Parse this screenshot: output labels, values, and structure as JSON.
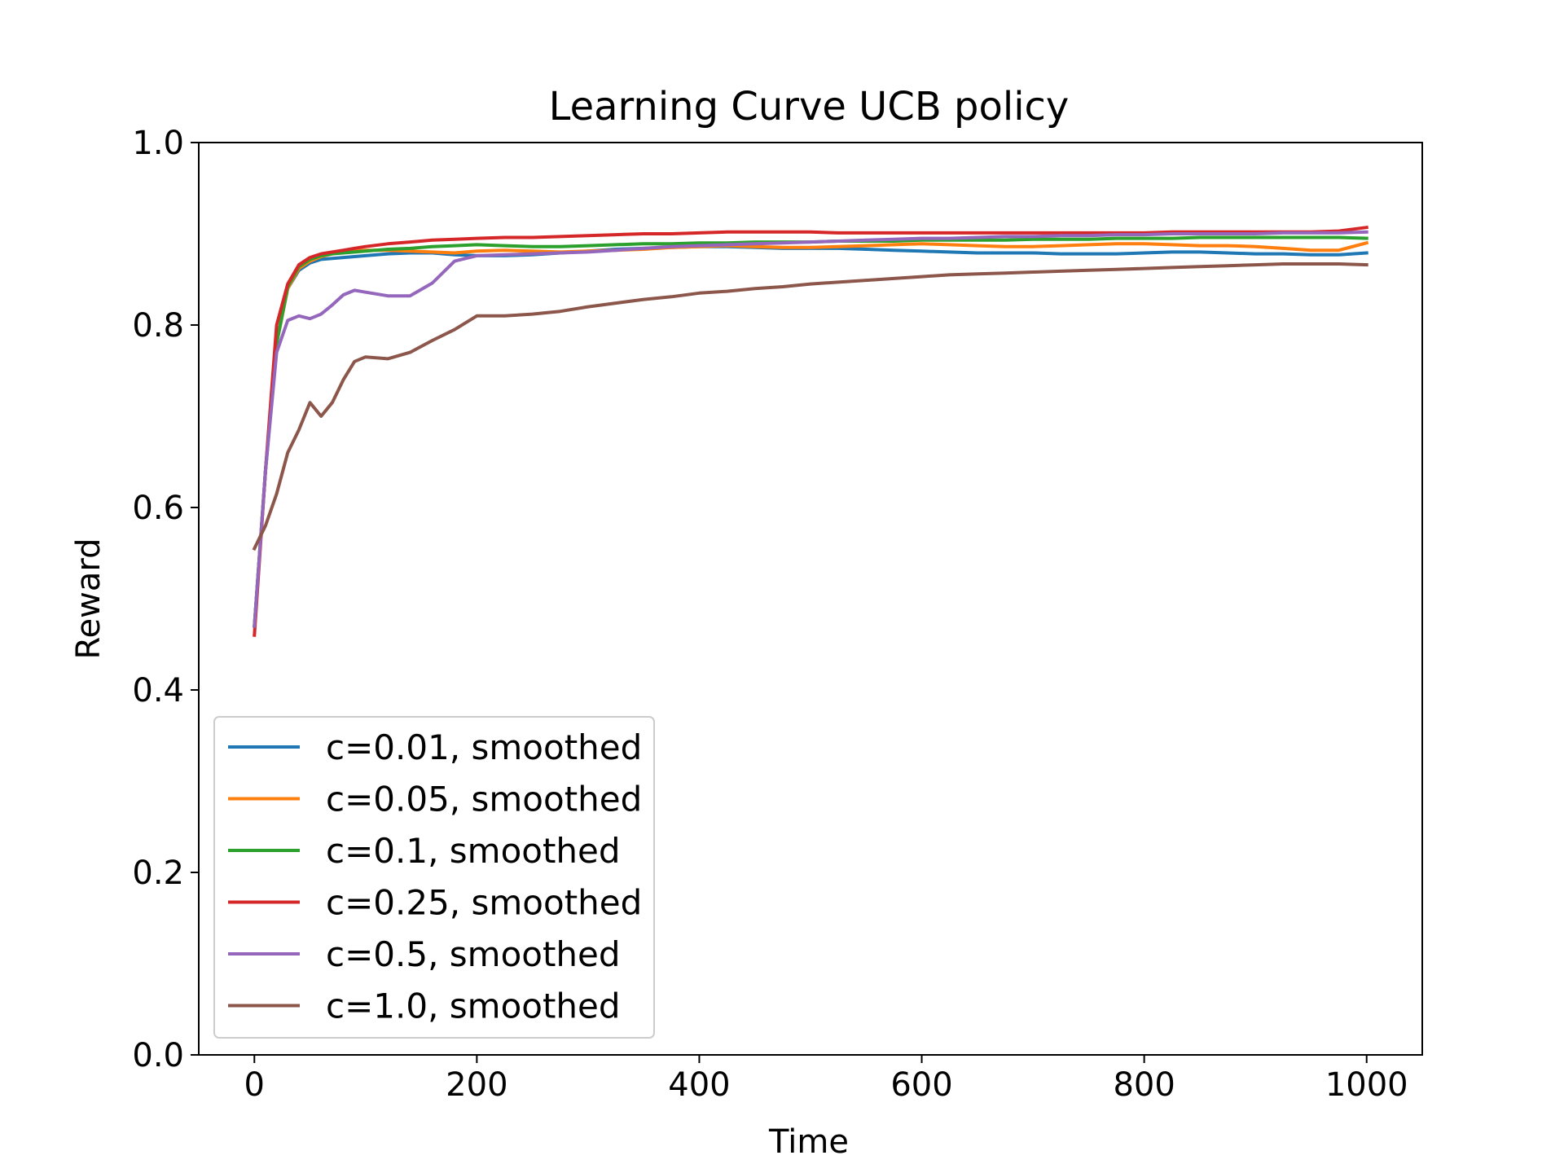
{
  "chart_data": {
    "type": "line",
    "title": "Learning Curve UCB policy",
    "xlabel": "Time",
    "ylabel": "Reward",
    "xlim": [
      -50,
      1050
    ],
    "ylim": [
      0.0,
      1.0
    ],
    "xticks": [
      0,
      200,
      400,
      600,
      800,
      1000
    ],
    "xtick_labels": [
      "0",
      "200",
      "400",
      "600",
      "800",
      "1000"
    ],
    "yticks": [
      0.0,
      0.2,
      0.4,
      0.6,
      0.8,
      1.0
    ],
    "ytick_labels": [
      "0.0",
      "0.2",
      "0.4",
      "0.6",
      "0.8",
      "1.0"
    ],
    "grid": false,
    "legend_position": "lower-left",
    "x": [
      0,
      10,
      20,
      30,
      40,
      50,
      60,
      70,
      80,
      90,
      100,
      120,
      140,
      160,
      180,
      200,
      225,
      250,
      275,
      300,
      325,
      350,
      375,
      400,
      425,
      450,
      475,
      500,
      525,
      550,
      575,
      600,
      625,
      650,
      675,
      700,
      725,
      750,
      775,
      800,
      825,
      850,
      875,
      900,
      925,
      950,
      975,
      1000
    ],
    "series": [
      {
        "name": "c=0.01, smoothed",
        "color": "#1f77b4",
        "values": [
          0.47,
          0.64,
          0.78,
          0.84,
          0.86,
          0.868,
          0.872,
          0.873,
          0.874,
          0.875,
          0.876,
          0.878,
          0.879,
          0.879,
          0.877,
          0.876,
          0.876,
          0.877,
          0.879,
          0.881,
          0.883,
          0.884,
          0.885,
          0.886,
          0.886,
          0.885,
          0.884,
          0.884,
          0.884,
          0.883,
          0.882,
          0.881,
          0.88,
          0.879,
          0.879,
          0.879,
          0.878,
          0.878,
          0.878,
          0.879,
          0.88,
          0.88,
          0.879,
          0.878,
          0.878,
          0.877,
          0.877,
          0.879
        ]
      },
      {
        "name": "c=0.05, smoothed",
        "color": "#ff7f0e",
        "values": [
          0.47,
          0.64,
          0.78,
          0.84,
          0.862,
          0.87,
          0.875,
          0.878,
          0.88,
          0.881,
          0.882,
          0.882,
          0.881,
          0.88,
          0.879,
          0.881,
          0.882,
          0.881,
          0.88,
          0.881,
          0.882,
          0.883,
          0.885,
          0.886,
          0.887,
          0.886,
          0.885,
          0.885,
          0.886,
          0.887,
          0.888,
          0.889,
          0.888,
          0.887,
          0.886,
          0.886,
          0.887,
          0.888,
          0.889,
          0.889,
          0.888,
          0.887,
          0.887,
          0.886,
          0.884,
          0.882,
          0.882,
          0.89
        ]
      },
      {
        "name": "c=0.1, smoothed",
        "color": "#2ca02c",
        "values": [
          0.47,
          0.64,
          0.78,
          0.842,
          0.864,
          0.872,
          0.876,
          0.878,
          0.879,
          0.88,
          0.881,
          0.883,
          0.884,
          0.886,
          0.887,
          0.888,
          0.887,
          0.886,
          0.886,
          0.887,
          0.888,
          0.889,
          0.889,
          0.89,
          0.89,
          0.891,
          0.891,
          0.891,
          0.892,
          0.892,
          0.892,
          0.893,
          0.893,
          0.893,
          0.893,
          0.894,
          0.894,
          0.894,
          0.895,
          0.895,
          0.895,
          0.896,
          0.896,
          0.896,
          0.896,
          0.896,
          0.896,
          0.895
        ]
      },
      {
        "name": "c=0.25, smoothed",
        "color": "#d62728",
        "values": [
          0.46,
          0.64,
          0.8,
          0.845,
          0.866,
          0.874,
          0.878,
          0.88,
          0.882,
          0.884,
          0.886,
          0.889,
          0.891,
          0.893,
          0.894,
          0.895,
          0.896,
          0.896,
          0.897,
          0.898,
          0.899,
          0.9,
          0.9,
          0.901,
          0.902,
          0.902,
          0.902,
          0.902,
          0.901,
          0.901,
          0.901,
          0.901,
          0.901,
          0.901,
          0.901,
          0.901,
          0.901,
          0.901,
          0.901,
          0.901,
          0.902,
          0.902,
          0.902,
          0.902,
          0.902,
          0.902,
          0.903,
          0.907
        ]
      },
      {
        "name": "c=0.5, smoothed",
        "color": "#9467bd",
        "values": [
          0.47,
          0.64,
          0.77,
          0.805,
          0.81,
          0.807,
          0.812,
          0.822,
          0.833,
          0.838,
          0.836,
          0.832,
          0.832,
          0.846,
          0.87,
          0.876,
          0.877,
          0.878,
          0.879,
          0.88,
          0.882,
          0.884,
          0.886,
          0.887,
          0.888,
          0.889,
          0.89,
          0.891,
          0.892,
          0.893,
          0.894,
          0.895,
          0.895,
          0.896,
          0.897,
          0.897,
          0.898,
          0.898,
          0.899,
          0.899,
          0.9,
          0.9,
          0.9,
          0.9,
          0.901,
          0.901,
          0.901,
          0.902
        ]
      },
      {
        "name": "c=1.0, smoothed",
        "color": "#8c564b",
        "values": [
          0.555,
          0.58,
          0.615,
          0.66,
          0.685,
          0.715,
          0.7,
          0.715,
          0.74,
          0.76,
          0.765,
          0.763,
          0.77,
          0.783,
          0.795,
          0.81,
          0.81,
          0.812,
          0.815,
          0.82,
          0.824,
          0.828,
          0.831,
          0.835,
          0.837,
          0.84,
          0.842,
          0.845,
          0.847,
          0.849,
          0.851,
          0.853,
          0.855,
          0.856,
          0.857,
          0.858,
          0.859,
          0.86,
          0.861,
          0.862,
          0.863,
          0.864,
          0.865,
          0.866,
          0.867,
          0.867,
          0.867,
          0.866
        ]
      }
    ]
  }
}
